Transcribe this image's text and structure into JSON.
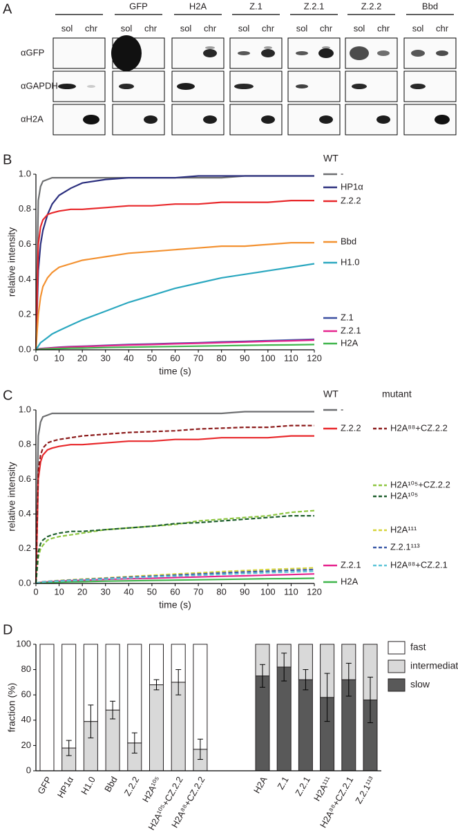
{
  "blot": {
    "label": "A",
    "groups": [
      null,
      "GFP",
      "H2A",
      "Z.1",
      "Z.2.1",
      "Z.2.2",
      "Bbd"
    ],
    "lanes": [
      "sol",
      "chr"
    ],
    "rows": [
      "αGFP",
      "αGAPDH",
      "αH2A"
    ]
  },
  "chart_data": [
    {
      "type": "line",
      "label": "B",
      "x_label": "time (s)",
      "y_label": "relative intensity",
      "legend_titles": [
        "WT"
      ],
      "x": [
        0,
        1,
        2,
        3,
        5,
        7,
        10,
        15,
        20,
        30,
        40,
        50,
        60,
        70,
        80,
        90,
        100,
        110,
        120
      ],
      "xlim": [
        0,
        120
      ],
      "xticks": [
        0,
        10,
        20,
        30,
        40,
        50,
        60,
        70,
        80,
        90,
        100,
        110,
        120
      ],
      "ylim": [
        0,
        1
      ],
      "yticks": [
        {
          "value": 0,
          "label": "0.0"
        },
        0.2,
        0.4,
        0.6,
        0.8,
        {
          "value": 1,
          "label": "1.0"
        }
      ],
      "series": [
        {
          "name": "-",
          "color": "#6d6e70",
          "style": "solid",
          "values": [
            0,
            0.85,
            0.93,
            0.96,
            0.97,
            0.98,
            0.98,
            0.98,
            0.98,
            0.98,
            0.98,
            0.98,
            0.98,
            0.98,
            0.98,
            0.99,
            0.99,
            0.99,
            0.99
          ]
        },
        {
          "name": "HP1α",
          "color": "#2b2f7e",
          "style": "solid",
          "values": [
            0,
            0.45,
            0.6,
            0.68,
            0.77,
            0.83,
            0.88,
            0.92,
            0.95,
            0.97,
            0.98,
            0.98,
            0.98,
            0.99,
            0.99,
            0.99,
            0.99,
            0.99,
            0.99
          ]
        },
        {
          "name": "Z.2.2",
          "color": "#e8272a",
          "style": "solid",
          "values": [
            0,
            0.6,
            0.7,
            0.74,
            0.77,
            0.78,
            0.79,
            0.8,
            0.8,
            0.81,
            0.82,
            0.82,
            0.83,
            0.83,
            0.84,
            0.84,
            0.84,
            0.85,
            0.85
          ]
        },
        {
          "name": "Bbd",
          "color": "#f39130",
          "style": "solid",
          "values": [
            0,
            0.2,
            0.3,
            0.36,
            0.41,
            0.44,
            0.47,
            0.49,
            0.51,
            0.53,
            0.55,
            0.56,
            0.57,
            0.58,
            0.59,
            0.59,
            0.6,
            0.61,
            0.61
          ]
        },
        {
          "name": "H1.0",
          "color": "#2aa7bf",
          "style": "solid",
          "values": [
            0,
            0.02,
            0.04,
            0.05,
            0.07,
            0.09,
            0.11,
            0.14,
            0.17,
            0.22,
            0.27,
            0.31,
            0.35,
            0.38,
            0.41,
            0.43,
            0.45,
            0.47,
            0.49
          ]
        },
        {
          "name": "Z.1",
          "color": "#3a4fa0",
          "style": "solid",
          "values": [
            0,
            0.005,
            0.007,
            0.008,
            0.01,
            0.012,
            0.015,
            0.018,
            0.02,
            0.025,
            0.03,
            0.033,
            0.037,
            0.04,
            0.045,
            0.048,
            0.052,
            0.056,
            0.06
          ]
        },
        {
          "name": "Z.2.1",
          "color": "#e6248e",
          "style": "solid",
          "values": [
            0,
            0.004,
            0.006,
            0.007,
            0.009,
            0.011,
            0.013,
            0.016,
            0.018,
            0.023,
            0.027,
            0.03,
            0.034,
            0.037,
            0.041,
            0.044,
            0.048,
            0.051,
            0.055
          ]
        },
        {
          "name": "H2A",
          "color": "#3fb54b",
          "style": "solid",
          "values": [
            0,
            0.002,
            0.003,
            0.004,
            0.005,
            0.006,
            0.007,
            0.009,
            0.01,
            0.013,
            0.015,
            0.017,
            0.019,
            0.021,
            0.023,
            0.025,
            0.027,
            0.028,
            0.03
          ]
        }
      ]
    },
    {
      "type": "line",
      "label": "C",
      "x_label": "time (s)",
      "y_label": "relative intensity",
      "legend_titles": [
        "WT",
        "mutant"
      ],
      "x": [
        0,
        1,
        2,
        3,
        5,
        7,
        10,
        15,
        20,
        30,
        40,
        50,
        60,
        70,
        80,
        90,
        100,
        110,
        120
      ],
      "xlim": [
        0,
        120
      ],
      "xticks": [
        0,
        10,
        20,
        30,
        40,
        50,
        60,
        70,
        80,
        90,
        100,
        110,
        120
      ],
      "ylim": [
        0,
        1
      ],
      "yticks": [
        {
          "value": 0,
          "label": "0.0"
        },
        0.2,
        0.4,
        0.6,
        0.8,
        {
          "value": 1,
          "label": "1.0"
        }
      ],
      "series": [
        {
          "name": "-",
          "color": "#6d6e70",
          "style": "solid",
          "values": [
            0,
            0.85,
            0.93,
            0.96,
            0.97,
            0.98,
            0.98,
            0.98,
            0.98,
            0.98,
            0.98,
            0.98,
            0.98,
            0.98,
            0.98,
            0.99,
            0.99,
            0.99,
            0.99
          ]
        },
        {
          "name": "Z.2.2",
          "color": "#e8272a",
          "style": "solid",
          "values": [
            0,
            0.6,
            0.7,
            0.74,
            0.77,
            0.78,
            0.79,
            0.8,
            0.8,
            0.81,
            0.82,
            0.82,
            0.83,
            0.83,
            0.84,
            0.84,
            0.84,
            0.85,
            0.85
          ]
        },
        {
          "name": "Z.2.1",
          "color": "#e6248e",
          "style": "solid",
          "values": [
            0,
            0.004,
            0.006,
            0.007,
            0.009,
            0.011,
            0.013,
            0.016,
            0.018,
            0.023,
            0.027,
            0.03,
            0.034,
            0.037,
            0.041,
            0.044,
            0.048,
            0.051,
            0.055
          ]
        },
        {
          "name": "H2A",
          "color": "#3fb54b",
          "style": "solid",
          "values": [
            0,
            0.002,
            0.003,
            0.004,
            0.005,
            0.006,
            0.007,
            0.009,
            0.01,
            0.013,
            0.015,
            0.017,
            0.019,
            0.021,
            0.023,
            0.025,
            0.027,
            0.028,
            0.03
          ]
        },
        {
          "name": "H2A⁸⁸+CZ.2.2",
          "color": "#8b1a1a",
          "style": "dashed",
          "values": [
            0,
            0.65,
            0.74,
            0.78,
            0.81,
            0.82,
            0.83,
            0.84,
            0.85,
            0.86,
            0.87,
            0.875,
            0.88,
            0.89,
            0.895,
            0.9,
            0.9,
            0.91,
            0.91
          ]
        },
        {
          "name": "H2A¹⁰⁵+CZ.2.2",
          "color": "#8dc63f",
          "style": "dashed",
          "values": [
            0,
            0.15,
            0.2,
            0.22,
            0.25,
            0.26,
            0.27,
            0.28,
            0.29,
            0.31,
            0.32,
            0.33,
            0.34,
            0.36,
            0.37,
            0.38,
            0.39,
            0.41,
            0.42
          ]
        },
        {
          "name": "H2A¹⁰⁵",
          "color": "#1d5e2c",
          "style": "dashed",
          "values": [
            0,
            0.18,
            0.23,
            0.25,
            0.27,
            0.28,
            0.29,
            0.3,
            0.3,
            0.31,
            0.32,
            0.33,
            0.345,
            0.35,
            0.36,
            0.37,
            0.38,
            0.39,
            0.39
          ]
        },
        {
          "name": "H2A¹¹¹",
          "color": "#d6d43a",
          "style": "dashed",
          "values": [
            0,
            0.005,
            0.008,
            0.01,
            0.012,
            0.014,
            0.017,
            0.021,
            0.025,
            0.032,
            0.04,
            0.047,
            0.054,
            0.061,
            0.068,
            0.074,
            0.08,
            0.085,
            0.09
          ]
        },
        {
          "name": "Z.2.1¹¹³",
          "color": "#3c5aa8",
          "style": "dashed",
          "values": [
            0,
            0.004,
            0.007,
            0.009,
            0.011,
            0.013,
            0.015,
            0.019,
            0.022,
            0.029,
            0.036,
            0.042,
            0.048,
            0.054,
            0.06,
            0.066,
            0.071,
            0.076,
            0.08
          ]
        },
        {
          "name": "H2A⁸⁸+CZ.2.1",
          "color": "#5fc6d8",
          "style": "dashed",
          "values": [
            0,
            0.004,
            0.006,
            0.008,
            0.01,
            0.011,
            0.013,
            0.016,
            0.019,
            0.025,
            0.031,
            0.037,
            0.042,
            0.047,
            0.052,
            0.057,
            0.062,
            0.066,
            0.07
          ]
        }
      ]
    },
    {
      "type": "bar",
      "stacked": true,
      "label": "D",
      "y_label": "fraction (%)",
      "categories": [
        "GFP",
        "HP1α",
        "H1.0",
        "Bbd",
        "Z.2.2",
        "H2A¹⁰⁵",
        "H2A¹⁰⁵+CZ.2.2",
        "H2A⁸⁸+CZ.2.2",
        "H2A",
        "Z.1",
        "Z.2.1",
        "H2A¹¹¹",
        "H2A⁸⁸+CZ.2.1",
        "Z.2.1¹¹³"
      ],
      "ylim": [
        0,
        100
      ],
      "yticks": [
        0,
        20,
        40,
        60,
        80,
        100
      ],
      "series": [
        {
          "name": "fast",
          "color": "#ffffff",
          "values": [
            100,
            82,
            61,
            52,
            78,
            32,
            30,
            83,
            0,
            0,
            0,
            0,
            0,
            0
          ]
        },
        {
          "name": "intermediate",
          "color": "#d9d9d9",
          "values": [
            0,
            18,
            39,
            48,
            22,
            68,
            70,
            17,
            25,
            18,
            28,
            42,
            28,
            44
          ],
          "errors": [
            null,
            6,
            13,
            7,
            8,
            4,
            10,
            8,
            null,
            null,
            null,
            null,
            null,
            null
          ]
        },
        {
          "name": "slow",
          "color": "#595959",
          "values": [
            0,
            0,
            0,
            0,
            0,
            0,
            0,
            0,
            75,
            82,
            72,
            58,
            72,
            56
          ],
          "errors": [
            null,
            null,
            null,
            null,
            null,
            null,
            null,
            null,
            9,
            11,
            8,
            19,
            13,
            18
          ]
        }
      ]
    }
  ]
}
